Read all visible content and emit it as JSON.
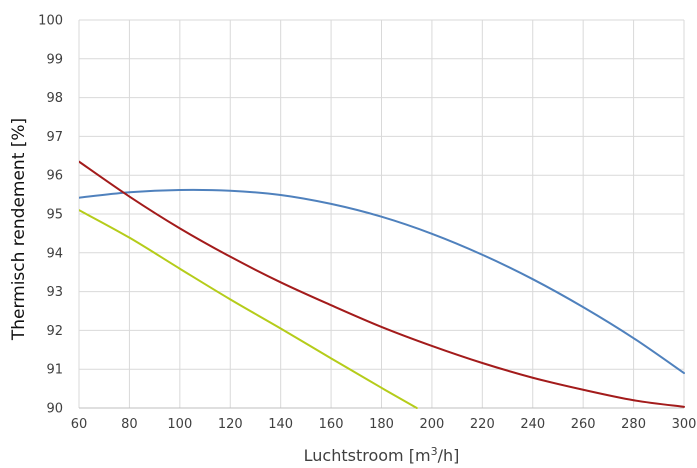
{
  "chart_data": {
    "type": "line",
    "title": "",
    "xlabel": "Luchtstroom [m³/h]",
    "ylabel": "Thermisch rendement [%]",
    "xlim": [
      60,
      300
    ],
    "ylim": [
      90,
      100
    ],
    "xticks": [
      60,
      80,
      100,
      120,
      140,
      160,
      180,
      200,
      220,
      240,
      260,
      280,
      300
    ],
    "yticks": [
      90,
      91,
      92,
      93,
      94,
      95,
      96,
      97,
      98,
      99,
      100
    ],
    "grid": true,
    "legend": "none",
    "series": [
      {
        "color": "#4f81bd",
        "x": [
          60,
          80,
          100,
          120,
          140,
          160,
          180,
          200,
          220,
          240,
          260,
          280,
          300
        ],
        "y": [
          95.42,
          95.56,
          95.62,
          95.6,
          95.49,
          95.26,
          94.93,
          94.49,
          93.95,
          93.32,
          92.6,
          91.8,
          90.9
        ]
      },
      {
        "color": "#a31b1b",
        "x": [
          60,
          80,
          100,
          120,
          140,
          160,
          180,
          200,
          220,
          240,
          260,
          280,
          300
        ],
        "y": [
          96.35,
          95.45,
          94.63,
          93.9,
          93.24,
          92.65,
          92.09,
          91.6,
          91.16,
          90.78,
          90.47,
          90.2,
          90.03
        ]
      },
      {
        "color": "#b5cc1a",
        "x": [
          60,
          80,
          100,
          120,
          140,
          160,
          180,
          194
        ],
        "y": [
          95.1,
          94.39,
          93.59,
          92.8,
          92.05,
          91.28,
          90.52,
          90.0
        ]
      }
    ]
  }
}
